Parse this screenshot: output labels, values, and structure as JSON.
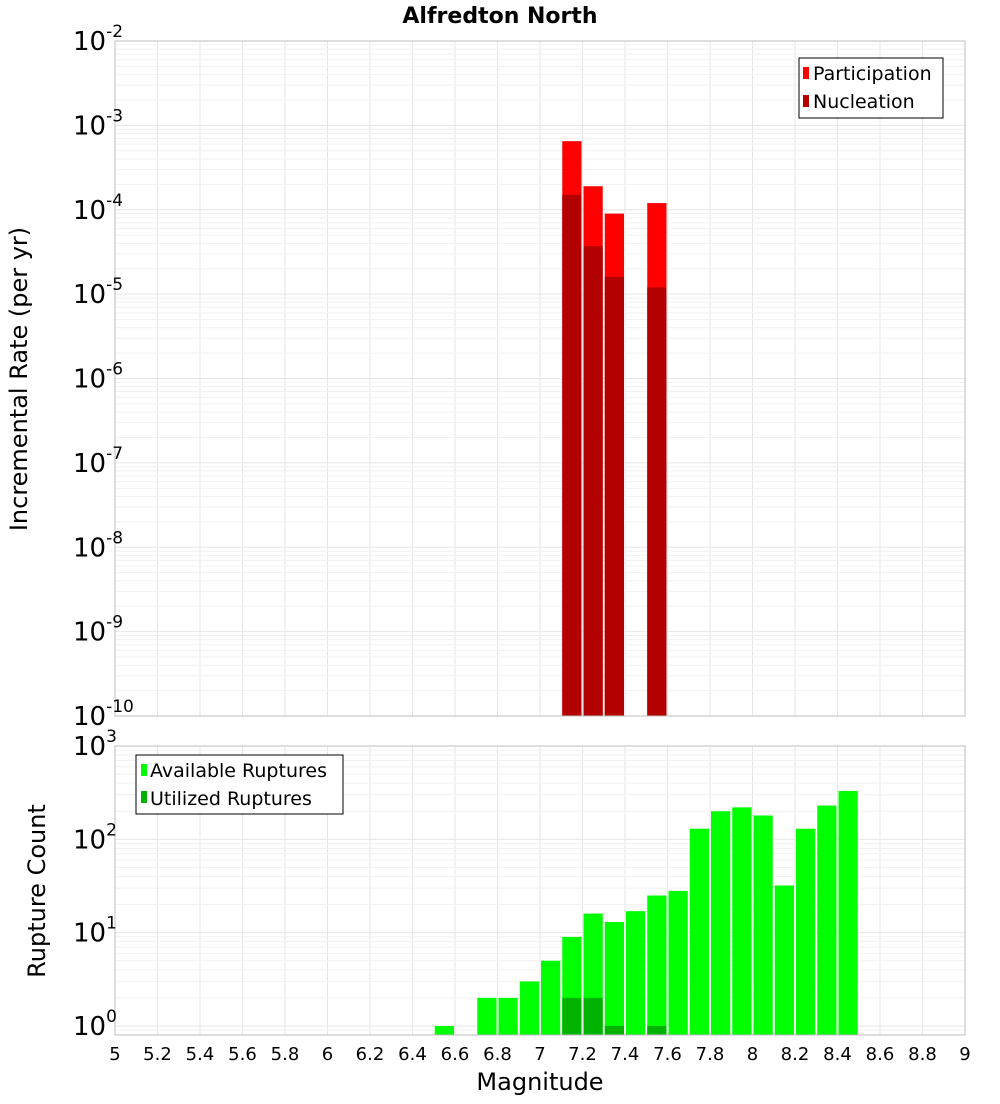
{
  "chart_data": [
    {
      "type": "bar",
      "title": "Alfredton North",
      "ylabel": "Incremental Rate (per yr)",
      "xlabel": "",
      "yscale": "log",
      "ylim": [
        1e-10,
        0.01
      ],
      "xlim": [
        5,
        9
      ],
      "y_tick_exponents": [
        "-2",
        "-3",
        "-4",
        "-5",
        "-6",
        "-7",
        "-8",
        "-9",
        "-10"
      ],
      "legend_position": "top-right",
      "series": [
        {
          "name": "Participation",
          "color": "#ff0000",
          "x": [
            7.15,
            7.25,
            7.35,
            7.55
          ],
          "values": [
            0.00065,
            0.00019,
            9e-05,
            0.00012
          ]
        },
        {
          "name": "Nucleation",
          "color": "#b30000",
          "x": [
            7.15,
            7.25,
            7.35,
            7.55
          ],
          "values": [
            0.00015,
            3.7e-05,
            1.6e-05,
            1.2e-05
          ]
        }
      ]
    },
    {
      "type": "bar",
      "title": "",
      "ylabel": "Rupture Count",
      "xlabel": "Magnitude",
      "yscale": "log",
      "ylim": [
        0.8,
        1000
      ],
      "xlim": [
        5,
        9
      ],
      "y_tick_exponents": [
        "3",
        "2",
        "1",
        "0"
      ],
      "x_ticks": [
        "5",
        "5.2",
        "5.4",
        "5.6",
        "5.8",
        "6",
        "6.2",
        "6.4",
        "6.6",
        "6.8",
        "7",
        "7.2",
        "7.4",
        "7.6",
        "7.8",
        "8",
        "8.2",
        "8.4",
        "8.6",
        "8.8",
        "9"
      ],
      "legend_position": "top-left",
      "series": [
        {
          "name": "Available Ruptures",
          "color": "#00ff00",
          "x": [
            6.55,
            6.75,
            6.85,
            6.95,
            7.05,
            7.15,
            7.25,
            7.35,
            7.45,
            7.55,
            7.65,
            7.75,
            7.85,
            7.95,
            8.05,
            8.15,
            8.25,
            8.35,
            8.45
          ],
          "values": [
            1,
            2,
            2,
            3,
            5,
            9,
            16,
            13,
            17,
            25,
            28,
            130,
            200,
            220,
            180,
            32,
            130,
            230,
            330
          ]
        },
        {
          "name": "Utilized Ruptures",
          "color": "#00b300",
          "x": [
            7.15,
            7.25,
            7.35,
            7.55
          ],
          "values": [
            2,
            2,
            1,
            1
          ]
        }
      ]
    }
  ]
}
